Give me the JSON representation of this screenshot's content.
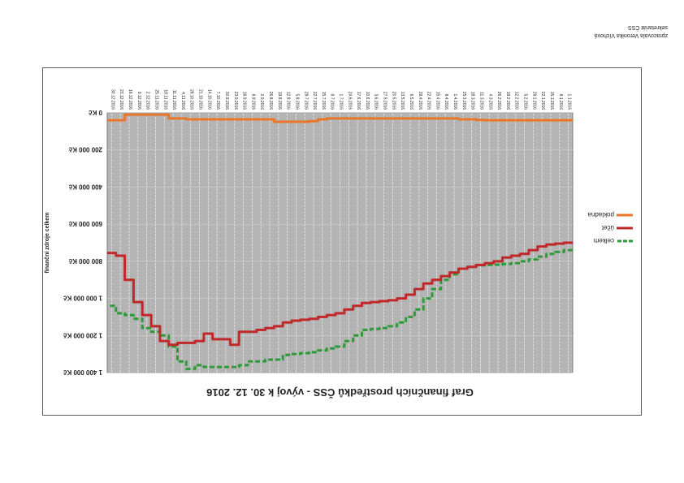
{
  "credits": {
    "line1": "zpracovala Veronika Víchová",
    "line2": "sekretariát ČSS"
  },
  "chart_data": {
    "type": "line",
    "title": "Graf finančních prostředků ČSS - vývoj k 30. 12. 2016",
    "xlabel": "",
    "ylabel": "finanční zdroje celkem",
    "ylim": [
      0,
      1400000
    ],
    "yticks": [
      "0 Kč",
      "200 000 Kč",
      "400 000 Kč",
      "600 000 Kč",
      "800 000 Kč",
      "1 000 000 Kč",
      "1 200 000 Kč",
      "1 400 000 Kč"
    ],
    "x": [
      "1.1.2016",
      "8.1.2016",
      "15.1.2016",
      "22.1.2016",
      "29.1.2016",
      "5.2.2016",
      "12.2.2016",
      "19.2.2016",
      "26.2.2016",
      "4.3.2016",
      "11.3.2016",
      "18.3.2016",
      "25.3.2016",
      "1.4.2016",
      "8.4.2016",
      "15.4.2016",
      "22.4.2016",
      "29.4.2016",
      "6.5.2016",
      "13.5.2016",
      "20.5.2016",
      "27.5.2016",
      "3.6.2016",
      "10.6.2016",
      "17.6.2016",
      "24.6.2016",
      "1.7.2016",
      "8.7.2016",
      "15.7.2016",
      "22.7.2016",
      "29.7.2016",
      "5.8.2016",
      "12.8.2016",
      "19.8.2016",
      "26.8.2016",
      "2.9.2016",
      "9.9.2016",
      "16.9.2016",
      "23.9.2016",
      "30.9.2016",
      "7.10.2016",
      "14.10.2016",
      "21.10.2016",
      "28.10.2016",
      "4.11.2016",
      "11.11.2016",
      "18.11.2016",
      "25.11.2016",
      "2.12.2016",
      "9.12.2016",
      "16.12.2016",
      "23.12.2016",
      "30.12.2016"
    ],
    "legend_position": "right",
    "grid": true,
    "series": [
      {
        "name": "celkem",
        "color": "#2e9a3a",
        "dash": true,
        "values": [
          740000,
          750000,
          760000,
          775000,
          790000,
          800000,
          810000,
          815000,
          818000,
          820000,
          822000,
          830000,
          840000,
          870000,
          900000,
          950000,
          1000000,
          1060000,
          1100000,
          1130000,
          1150000,
          1160000,
          1165000,
          1170000,
          1200000,
          1230000,
          1260000,
          1270000,
          1280000,
          1290000,
          1295000,
          1300000,
          1305000,
          1330000,
          1330000,
          1340000,
          1340000,
          1360000,
          1370000,
          1370000,
          1370000,
          1370000,
          1360000,
          1380000,
          1340000,
          1260000,
          1200000,
          1180000,
          1160000,
          1110000,
          1090000,
          1080000,
          1040000
        ]
      },
      {
        "name": "účet",
        "color": "#c0282a",
        "dash": false,
        "values": [
          700000,
          705000,
          710000,
          720000,
          740000,
          760000,
          770000,
          780000,
          800000,
          810000,
          820000,
          830000,
          840000,
          860000,
          880000,
          900000,
          920000,
          950000,
          980000,
          1000000,
          1010000,
          1015000,
          1020000,
          1025000,
          1040000,
          1060000,
          1080000,
          1090000,
          1100000,
          1110000,
          1115000,
          1120000,
          1130000,
          1150000,
          1160000,
          1170000,
          1180000,
          1180000,
          1250000,
          1220000,
          1220000,
          1190000,
          1230000,
          1240000,
          1240000,
          1250000,
          1230000,
          1150000,
          1090000,
          1020000,
          900000,
          770000,
          755000
        ]
      },
      {
        "name": "pokladna",
        "color": "#e8772a",
        "dash": false,
        "values": [
          40000,
          40000,
          40000,
          40000,
          40000,
          40000,
          40000,
          40000,
          40000,
          40000,
          38000,
          35000,
          35000,
          30000,
          30000,
          30000,
          30000,
          30000,
          30000,
          30000,
          30000,
          30000,
          30000,
          30000,
          30000,
          30000,
          30000,
          30000,
          35000,
          45000,
          48000,
          48000,
          48000,
          48000,
          35000,
          35000,
          35000,
          35000,
          35000,
          35000,
          35000,
          35000,
          35000,
          35000,
          30000,
          30000,
          10000,
          10000,
          10000,
          10000,
          10000,
          40000,
          40000
        ]
      }
    ]
  }
}
